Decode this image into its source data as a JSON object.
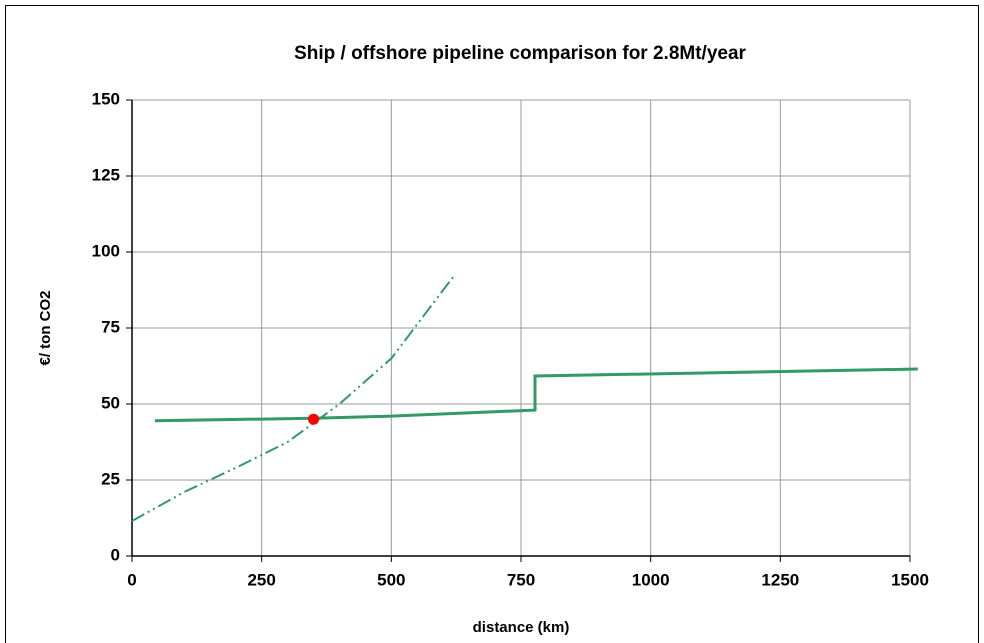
{
  "chart_data": {
    "type": "line",
    "title": "Ship / offshore pipeline comparison for 2.8Mt/year",
    "xlabel": "distance (km)",
    "ylabel": "€/ ton CO2",
    "xlim": [
      0,
      1500
    ],
    "xticks": [
      0,
      250,
      500,
      750,
      1000,
      1250,
      1500
    ],
    "ylim": [
      0,
      150
    ],
    "yticks": [
      0,
      25,
      50,
      75,
      100,
      125,
      150
    ],
    "grid": true,
    "series": [
      {
        "color": "#339966",
        "style": "solid",
        "x": [
          44,
          350,
          500,
          777,
          777,
          1515
        ],
        "values": [
          44.5,
          45.3,
          46,
          48,
          59.2,
          61.5
        ]
      },
      {
        "color": "#339966",
        "style": "dashdot",
        "x": [
          0,
          100,
          200,
          300,
          400,
          500,
          620
        ],
        "values": [
          11.5,
          21,
          29,
          37.5,
          50,
          65,
          92
        ]
      },
      {
        "color": "#ff0000",
        "style": "marker",
        "x": [
          350
        ],
        "values": [
          45
        ]
      }
    ]
  }
}
